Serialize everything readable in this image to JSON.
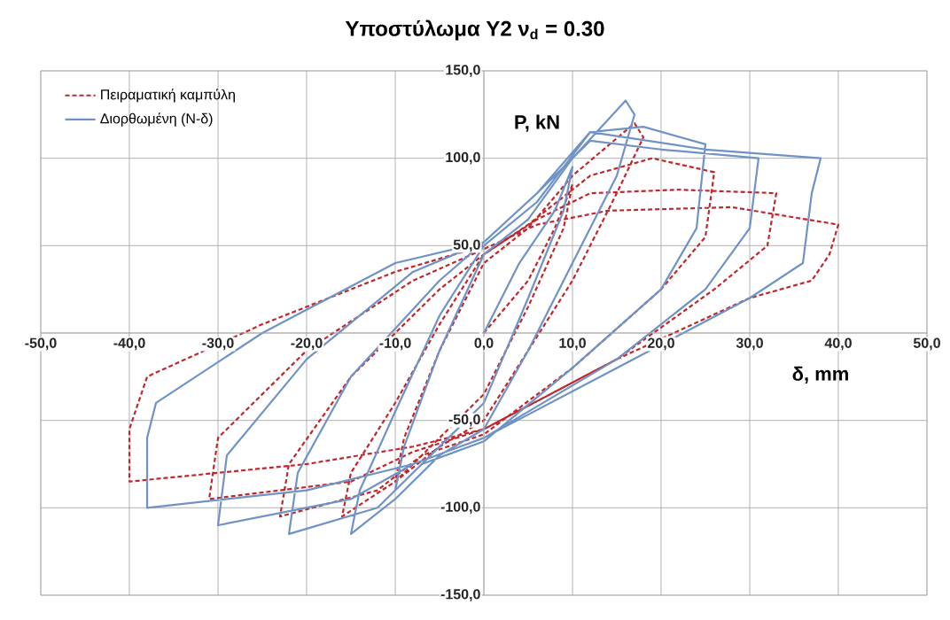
{
  "chart_data": {
    "type": "line",
    "title": "Υποστύλωμα Υ2  ν$_{d}$ = 0.30",
    "xlabel": "δ, mm",
    "ylabel": "P, kN",
    "xlim": [
      -50,
      50
    ],
    "ylim": [
      -150,
      150
    ],
    "xticks": [
      {
        "value": -50,
        "label": "-50,0"
      },
      {
        "value": -40,
        "label": "-40,0"
      },
      {
        "value": -30,
        "label": "-30,0"
      },
      {
        "value": -20,
        "label": "-20,0"
      },
      {
        "value": -10,
        "label": "-10,0"
      },
      {
        "value": 0,
        "label": "0,0"
      },
      {
        "value": 10,
        "label": "10,0"
      },
      {
        "value": 20,
        "label": "20,0"
      },
      {
        "value": 30,
        "label": "30,0"
      },
      {
        "value": 40,
        "label": "40,0"
      },
      {
        "value": 50,
        "label": "50,0"
      }
    ],
    "yticks": [
      {
        "value": -150,
        "label": "-150,0"
      },
      {
        "value": -100,
        "label": "-100,0"
      },
      {
        "value": -50,
        "label": "-50,0"
      },
      {
        "value": 0,
        "label": null
      },
      {
        "value": 50,
        "label": "50,0"
      },
      {
        "value": 100,
        "label": "100,0"
      },
      {
        "value": 150,
        "label": "150,0"
      }
    ],
    "grid": true,
    "legend": "top left",
    "marker": "none",
    "series": [
      {
        "name": "Πειραματική καμπύλη",
        "color": "#c0282d",
        "line_style": "dashed",
        "x": [
          0,
          5,
          8,
          10,
          9,
          5,
          0,
          -5,
          -8,
          -10,
          -9,
          -5,
          0,
          5,
          10,
          17,
          18,
          15,
          10,
          5,
          0,
          -5,
          -10,
          -16,
          -15,
          -10,
          -5,
          0,
          5,
          12,
          19,
          26,
          25,
          20,
          10,
          0,
          -7,
          -12,
          -23,
          -22,
          -15,
          -5,
          0,
          6,
          12,
          22,
          33,
          32,
          26,
          15,
          0,
          -8,
          -15,
          -31,
          -30,
          -20,
          -8,
          0,
          6,
          14,
          28,
          40,
          39,
          37,
          30,
          15,
          0,
          -8,
          -20,
          -40,
          -40,
          -38,
          -25,
          -10,
          0
        ],
        "values": [
          0,
          30,
          60,
          85,
          60,
          15,
          -35,
          -60,
          -75,
          -85,
          -60,
          -10,
          40,
          60,
          90,
          120,
          112,
          80,
          30,
          -10,
          -50,
          -65,
          -85,
          -105,
          -80,
          -40,
          5,
          45,
          62,
          90,
          100,
          92,
          55,
          25,
          -20,
          -58,
          -70,
          -90,
          -105,
          -75,
          -25,
          25,
          45,
          65,
          80,
          82,
          80,
          50,
          25,
          -15,
          -55,
          -68,
          -85,
          -95,
          -60,
          -10,
          30,
          48,
          62,
          70,
          72,
          62,
          45,
          30,
          20,
          -15,
          -55,
          -65,
          -75,
          -85,
          -55,
          -25,
          5,
          35,
          50
        ]
      },
      {
        "name": "Διορθωμένη (N-δ)",
        "color": "#6f93c6",
        "line_style": "solid",
        "x": [
          0,
          4,
          8,
          10,
          9,
          5,
          0,
          -5,
          -8,
          -10,
          -9,
          -5,
          0,
          5,
          10,
          16,
          17,
          15,
          10,
          5,
          0,
          -5,
          -10,
          -15,
          -14,
          -10,
          -5,
          0,
          6,
          12,
          18,
          25,
          24,
          20,
          10,
          0,
          -7,
          -12,
          -22,
          -21,
          -15,
          -5,
          0,
          6,
          12,
          20,
          31,
          30,
          25,
          15,
          0,
          -8,
          -15,
          -30,
          -29,
          -20,
          -8,
          0,
          6,
          12,
          25,
          38,
          37,
          36,
          30,
          15,
          0,
          -8,
          -20,
          -38,
          -38,
          -37,
          -25,
          -10,
          0
        ],
        "values": [
          0,
          40,
          70,
          95,
          70,
          20,
          -40,
          -65,
          -80,
          -90,
          -65,
          -10,
          45,
          65,
          100,
          133,
          125,
          90,
          40,
          -10,
          -55,
          -70,
          -95,
          -115,
          -90,
          -45,
          10,
          50,
          75,
          115,
          118,
          108,
          60,
          25,
          -20,
          -62,
          -75,
          -100,
          -115,
          -80,
          -25,
          30,
          52,
          80,
          110,
          105,
          100,
          60,
          25,
          -15,
          -60,
          -75,
          -95,
          -110,
          -70,
          -15,
          35,
          52,
          80,
          115,
          105,
          100,
          80,
          40,
          20,
          -20,
          -60,
          -75,
          -90,
          -100,
          -60,
          -40,
          0,
          40,
          52
        ]
      }
    ]
  }
}
